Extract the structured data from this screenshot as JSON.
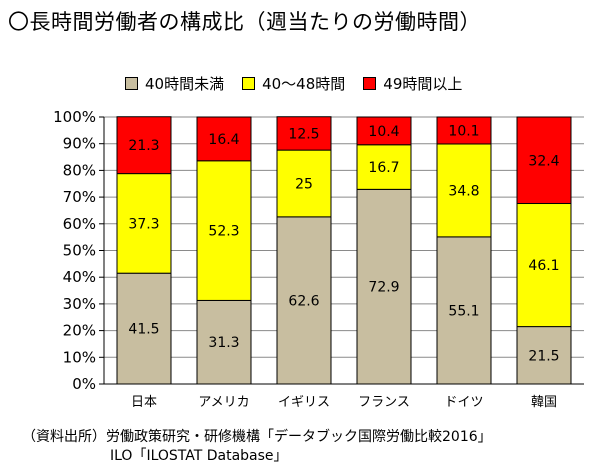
{
  "title": "〇長時間労働者の構成比（週当たりの労働時間）",
  "source": {
    "line1": "（資料出所）労働政策研究・研修機構「データブック国際労働比較2016」",
    "line2": "ILO「ILOSTAT Database」"
  },
  "colors": {
    "under40": "#c8bea0",
    "40to48": "#ffff00",
    "over49": "#ff0000"
  },
  "chart_data": {
    "type": "bar",
    "stacked": true,
    "categories": [
      "日本",
      "アメリカ",
      "イギリス",
      "フランス",
      "ドイツ",
      "韓国"
    ],
    "series": [
      {
        "name": "40時間未満",
        "values": [
          41.5,
          31.3,
          62.6,
          72.9,
          55.1,
          21.5
        ]
      },
      {
        "name": "40〜48時間",
        "values": [
          37.3,
          52.3,
          25,
          16.7,
          34.8,
          46.1
        ]
      },
      {
        "name": "49時間以上",
        "values": [
          21.3,
          16.4,
          12.5,
          10.4,
          10.1,
          32.4
        ]
      }
    ],
    "yticks": [
      "0%",
      "10%",
      "20%",
      "30%",
      "40%",
      "50%",
      "60%",
      "70%",
      "80%",
      "90%",
      "100%"
    ],
    "ylim": [
      0,
      100
    ],
    "grid": true,
    "legend": "top"
  }
}
